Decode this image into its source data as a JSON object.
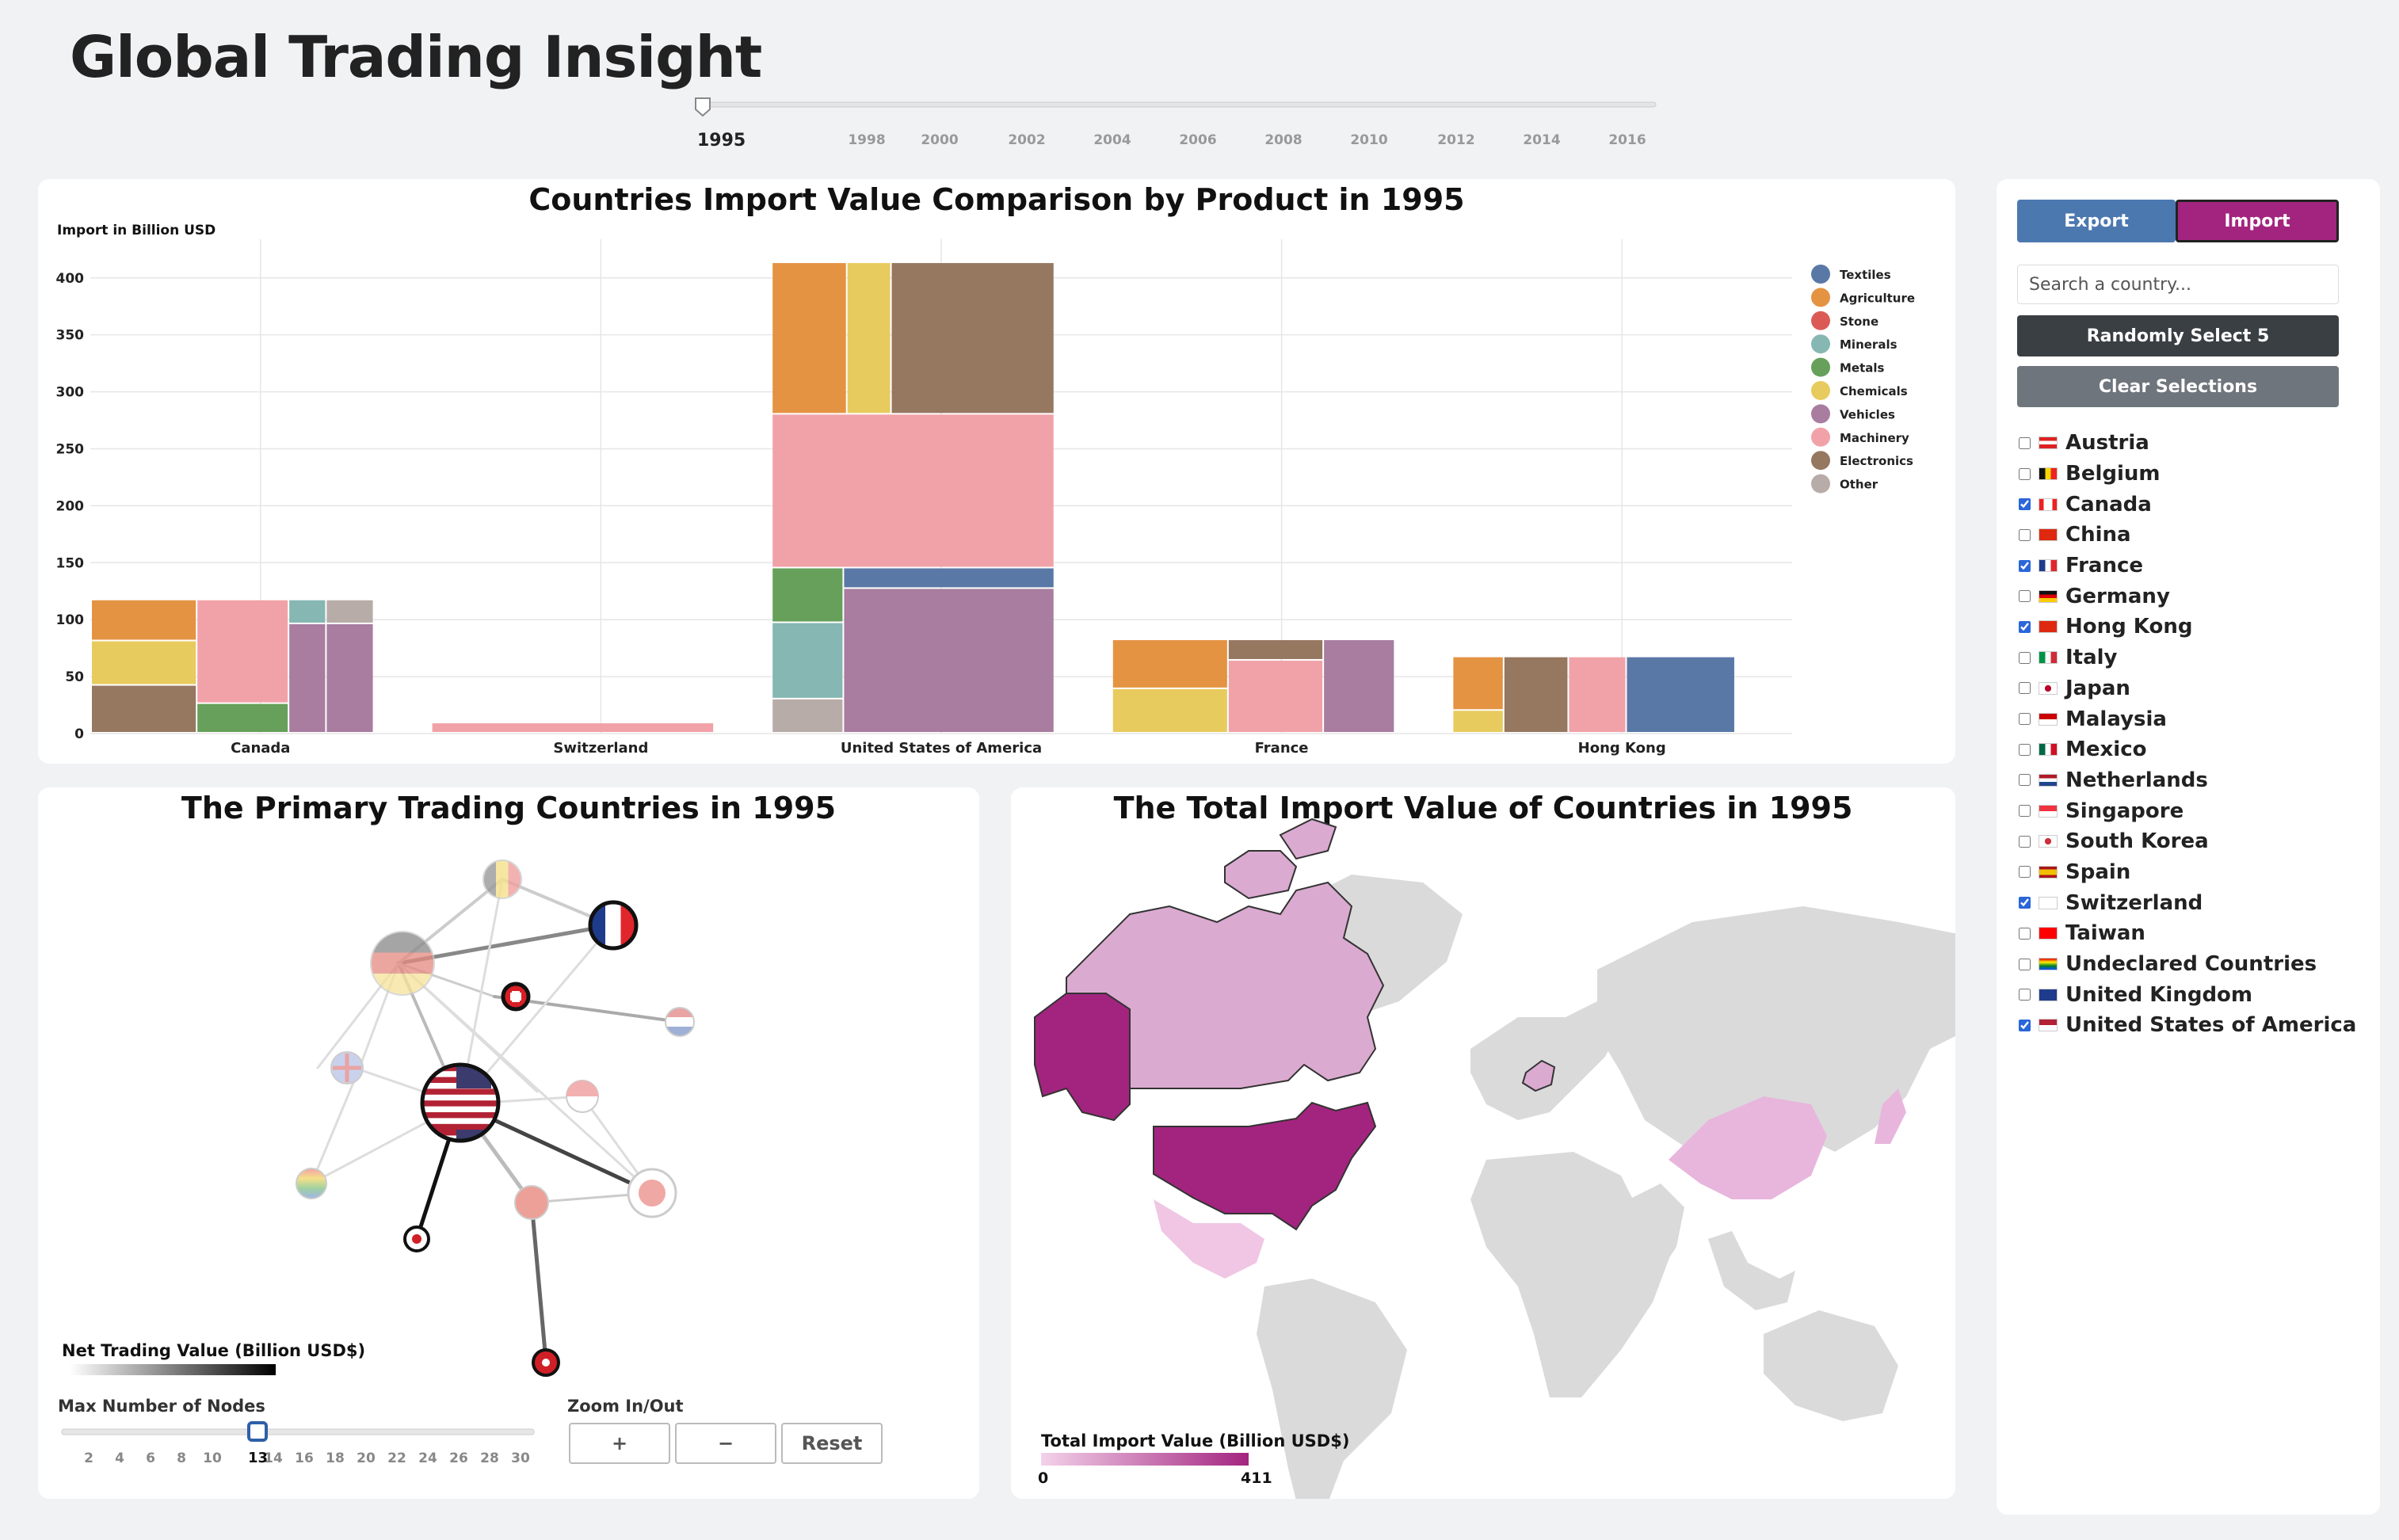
{
  "app": {
    "title": "Global Trading Insight"
  },
  "year_slider": {
    "selected": "1995",
    "ticks": [
      "1998",
      "2000",
      "2002",
      "2004",
      "2006",
      "2008",
      "2010",
      "2012",
      "2014",
      "2016"
    ]
  },
  "bar_panel": {
    "title": "Countries Import Value Comparison by Product in 1995",
    "ylabel": "Import in Billion USD"
  },
  "chart_data": {
    "type": "bar",
    "title": "Countries Import Value Comparison by Product in 1995",
    "ylabel": "Import in Billion USD",
    "ylim": [
      0,
      420
    ],
    "yticks": [
      0,
      50,
      100,
      150,
      200,
      250,
      300,
      350,
      400
    ],
    "categories": [
      "Canada",
      "Switzerland",
      "United States of America",
      "France",
      "Hong Kong"
    ],
    "legend_position": "top-right",
    "legend": [
      {
        "name": "Textiles",
        "color": "#5a78a6"
      },
      {
        "name": "Agriculture",
        "color": "#e49343"
      },
      {
        "name": "Stone",
        "color": "#dc5a55"
      },
      {
        "name": "Minerals",
        "color": "#86b7b2"
      },
      {
        "name": "Metals",
        "color": "#66a05a"
      },
      {
        "name": "Chemicals",
        "color": "#e8cb5e"
      },
      {
        "name": "Vehicles",
        "color": "#a87d9f"
      },
      {
        "name": "Machinery",
        "color": "#f1a2a8"
      },
      {
        "name": "Electronics",
        "color": "#967760"
      },
      {
        "name": "Other",
        "color": "#b8aca8"
      }
    ],
    "grid": true,
    "total_value": {
      "Canada": 117,
      "Switzerland": 9,
      "United States of America": 413,
      "France": 82,
      "Hong Kong": 67
    }
  },
  "network_panel": {
    "title": "The Primary Trading Countries in 1995",
    "legend_label": "Net Trading Value (Billion USD$)",
    "max_nodes_label": "Max Number of Nodes",
    "max_nodes_value": "13",
    "max_nodes_ticks": [
      "2",
      "4",
      "6",
      "8",
      "10",
      "14",
      "16",
      "18",
      "20",
      "22",
      "24",
      "26",
      "28",
      "30"
    ],
    "zoom_label": "Zoom In/Out",
    "zoom_in": "+",
    "zoom_out": "−",
    "reset": "Reset"
  },
  "map_panel": {
    "title": "The Total Import Value of Countries in 1995",
    "legend_label": "Total Import Value (Billion USD$)",
    "legend_min": "0",
    "legend_max": "411",
    "color_low": "#f3d2ea",
    "color_high": "#a3247f"
  },
  "sidebar": {
    "export_label": "Export",
    "import_label": "Import",
    "search_placeholder": "Search a country...",
    "random_label": "Randomly Select 5",
    "clear_label": "Clear Selections",
    "countries": [
      {
        "name": "Austria",
        "checked": false
      },
      {
        "name": "Belgium",
        "checked": false
      },
      {
        "name": "Canada",
        "checked": true
      },
      {
        "name": "China",
        "checked": false
      },
      {
        "name": "France",
        "checked": true
      },
      {
        "name": "Germany",
        "checked": false
      },
      {
        "name": "Hong Kong",
        "checked": true
      },
      {
        "name": "Italy",
        "checked": false
      },
      {
        "name": "Japan",
        "checked": false
      },
      {
        "name": "Malaysia",
        "checked": false
      },
      {
        "name": "Mexico",
        "checked": false
      },
      {
        "name": "Netherlands",
        "checked": false
      },
      {
        "name": "Singapore",
        "checked": false
      },
      {
        "name": "South Korea",
        "checked": false
      },
      {
        "name": "Spain",
        "checked": false
      },
      {
        "name": "Switzerland",
        "checked": true
      },
      {
        "name": "Taiwan",
        "checked": false
      },
      {
        "name": "Undeclared Countries",
        "checked": false
      },
      {
        "name": "United Kingdom",
        "checked": false
      },
      {
        "name": "United States of America",
        "checked": true
      }
    ],
    "accent_export": "#4c78b0",
    "accent_import": "#a3247f"
  }
}
